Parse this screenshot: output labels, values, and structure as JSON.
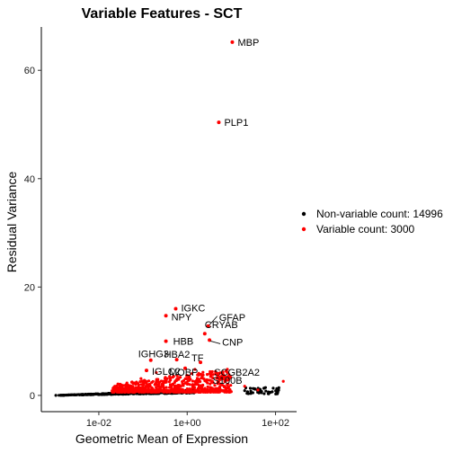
{
  "chart_data": {
    "type": "scatter",
    "title": "Variable Features - SCT",
    "xlabel": "Geometric Mean of Expression",
    "ylabel": "Residual Variance",
    "x_scale": "log10",
    "xlim": [
      0.0005,
      300
    ],
    "ylim": [
      -3,
      68
    ],
    "x_ticks": [
      {
        "value": 0.01,
        "label": "1e-02"
      },
      {
        "value": 1,
        "label": "1e+00"
      },
      {
        "value": 100,
        "label": "1e+02"
      }
    ],
    "y_ticks": [
      {
        "value": 0,
        "label": "0"
      },
      {
        "value": 20,
        "label": "20"
      },
      {
        "value": 40,
        "label": "40"
      },
      {
        "value": 60,
        "label": "60"
      }
    ],
    "grid": false,
    "legend_position": "right",
    "series": [
      {
        "name": "Non-variable count: 14996",
        "color": "#000000"
      },
      {
        "name": "Variable count: 3000",
        "color": "#ff0000"
      }
    ],
    "labeled_points": [
      {
        "label": "MBP",
        "x": 10.5,
        "y": 65.2
      },
      {
        "label": "PLP1",
        "x": 5.2,
        "y": 50.4
      },
      {
        "label": "IGKC",
        "x": 0.55,
        "y": 16.0
      },
      {
        "label": "NPY",
        "x": 0.33,
        "y": 14.7
      },
      {
        "label": "GFAP",
        "x": 3.0,
        "y": 12.8
      },
      {
        "label": "CRYAB",
        "x": 2.5,
        "y": 11.4
      },
      {
        "label": "CNP",
        "x": 3.2,
        "y": 10.2
      },
      {
        "label": "HBB",
        "x": 0.33,
        "y": 10.0
      },
      {
        "label": "IGHG3",
        "x": 0.15,
        "y": 6.5
      },
      {
        "label": "HBA2",
        "x": 0.58,
        "y": 6.6
      },
      {
        "label": "TF",
        "x": 2.0,
        "y": 6.1
      },
      {
        "label": "SCGB2A2",
        "x": 6.5,
        "y": 3.8
      },
      {
        "label": "IGLC2",
        "x": 0.12,
        "y": 4.6
      },
      {
        "label": "MOBP",
        "x": 0.9,
        "y": 5.0
      },
      {
        "label": "S100B",
        "x": 5.0,
        "y": 4.0
      }
    ]
  }
}
